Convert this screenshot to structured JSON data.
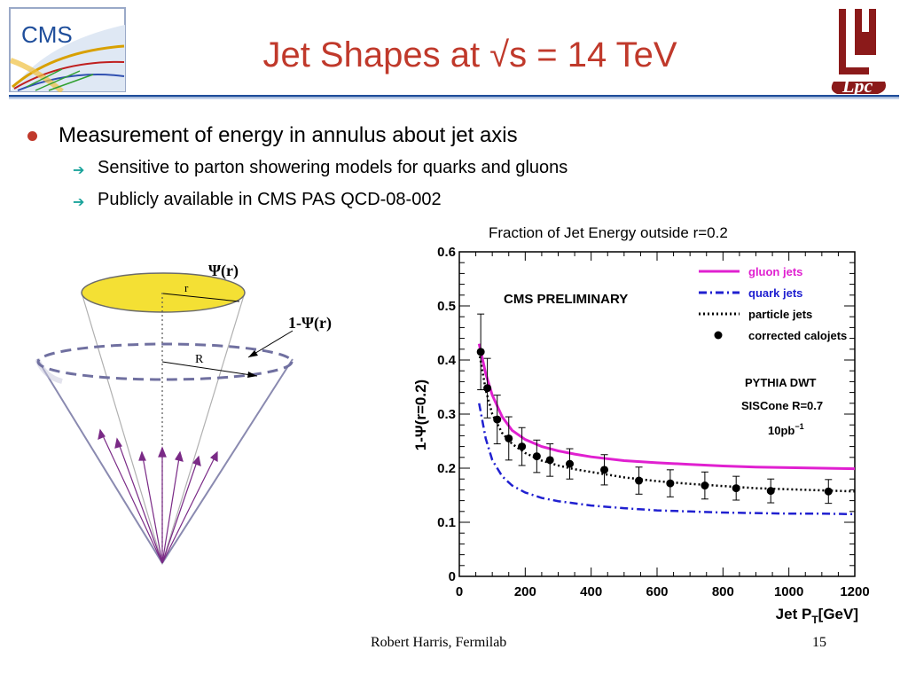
{
  "slide": {
    "title": "Jet Shapes at √s = 14 TeV",
    "logo_left_text": "CMS",
    "logo_right_text": "Lpc",
    "bullets": {
      "main": "Measurement of energy in annulus about jet axis",
      "sub": [
        "Sensitive to parton showering models for quarks and gluons",
        "Publicly available in CMS PAS QCD-08-002"
      ]
    },
    "footer": {
      "author": "Robert Harris, Fermilab",
      "page": "15"
    },
    "colors": {
      "title": "#c0392b",
      "rule": "#1f4e9b",
      "arrow": "#1aa39b",
      "bullet": "#c0392b"
    }
  },
  "cone_diagram": {
    "psi_label": "Ψ(r)",
    "one_minus_psi_label": "1-Ψ(r)",
    "r_label": "r",
    "R_label": "R",
    "disk_color": "#f4e034",
    "arrow_color": "#7a2a86"
  },
  "chart_caption": "Fraction of Jet Energy outside r=0.2",
  "chart_data": {
    "type": "line",
    "ylabel": "1-Ψ(r=0.2)",
    "xlabel": "Jet P",
    "xlabel_sub": "T",
    "xlabel_unit": "[GeV]",
    "xlim": [
      0,
      1200
    ],
    "ylim": [
      0,
      0.6
    ],
    "xticks": [
      "0",
      "200",
      "400",
      "600",
      "800",
      "1000",
      "1200"
    ],
    "yticks": [
      "0",
      "0.1",
      "0.2",
      "0.3",
      "0.4",
      "0.5",
      "0.6"
    ],
    "annotations": {
      "preliminary": "CMS PRELIMINARY",
      "generator": "PYTHIA DWT",
      "algorithm": "SISCone R=0.7",
      "luminosity": "10pb",
      "luminosity_sup": "−1"
    },
    "legend_position": "top-right",
    "series": [
      {
        "name": "gluon jets",
        "style": "solid",
        "color": "#e020d0",
        "x": [
          60,
          80,
          100,
          130,
          160,
          200,
          250,
          300,
          350,
          400,
          500,
          600,
          700,
          800,
          900,
          1000,
          1100,
          1200
        ],
        "y": [
          0.43,
          0.375,
          0.335,
          0.295,
          0.27,
          0.253,
          0.24,
          0.232,
          0.226,
          0.221,
          0.214,
          0.21,
          0.207,
          0.204,
          0.202,
          0.201,
          0.2,
          0.199
        ]
      },
      {
        "name": "quark jets",
        "style": "dashdot",
        "color": "#2020d0",
        "x": [
          60,
          80,
          100,
          130,
          160,
          200,
          250,
          300,
          350,
          400,
          500,
          600,
          700,
          800,
          900,
          1000,
          1100,
          1200
        ],
        "y": [
          0.32,
          0.255,
          0.215,
          0.185,
          0.168,
          0.155,
          0.145,
          0.139,
          0.135,
          0.131,
          0.126,
          0.122,
          0.12,
          0.118,
          0.117,
          0.116,
          0.116,
          0.115
        ]
      },
      {
        "name": "particle jets",
        "style": "dotted",
        "color": "#000000",
        "x": [
          60,
          80,
          100,
          130,
          160,
          200,
          250,
          300,
          350,
          400,
          500,
          600,
          700,
          800,
          900,
          1000,
          1100,
          1200
        ],
        "y": [
          0.415,
          0.345,
          0.3,
          0.265,
          0.245,
          0.228,
          0.214,
          0.205,
          0.198,
          0.193,
          0.183,
          0.176,
          0.171,
          0.167,
          0.163,
          0.161,
          0.159,
          0.157
        ]
      },
      {
        "name": "corrected calojets",
        "style": "markers",
        "color": "#000000",
        "x": [
          65,
          85,
          115,
          150,
          190,
          235,
          275,
          335,
          440,
          545,
          640,
          745,
          840,
          945,
          1120
        ],
        "y": [
          0.415,
          0.348,
          0.29,
          0.255,
          0.24,
          0.222,
          0.215,
          0.208,
          0.197,
          0.177,
          0.172,
          0.168,
          0.163,
          0.158,
          0.157
        ],
        "err": [
          0.07,
          0.055,
          0.045,
          0.04,
          0.035,
          0.03,
          0.03,
          0.028,
          0.028,
          0.025,
          0.025,
          0.025,
          0.022,
          0.022,
          0.022
        ]
      }
    ]
  }
}
